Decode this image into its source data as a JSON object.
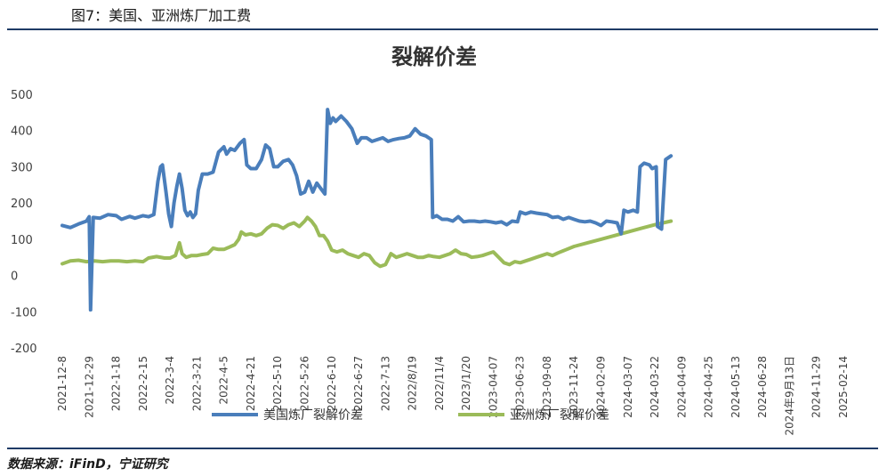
{
  "figure": {
    "caption": "图7：美国、亚洲炼厂加工费",
    "source": "数据来源：iFinD，宁证研究"
  },
  "colors": {
    "us": "#4a7ebb",
    "asia": "#9bbb59",
    "rule": "#1f3b66"
  },
  "chart_data": {
    "type": "line",
    "title": "裂解价差",
    "xlabel": "",
    "ylabel": "",
    "ylim": [
      -200,
      500
    ],
    "yticks": [
      500,
      400,
      300,
      200,
      100,
      0,
      -100,
      -200
    ],
    "categories": [
      "2021-12-8",
      "2021-12-29",
      "2022-1-18",
      "2022-2-15",
      "2022-3-4",
      "2022-3-21",
      "2022-4-5",
      "2022-4-21",
      "2022-5-10",
      "2022-5-26",
      "2022-6-10",
      "2022-6-27",
      "2022-7-13",
      "2022/8/19",
      "2022/11/4",
      "2023/1/20",
      "2023-04-07",
      "2023-06-23",
      "2023-09-08",
      "2023-11-24",
      "2024-02-09",
      "2024-03-07",
      "2024-03-22",
      "2024-04-09",
      "2024-04-25",
      "2024-05-13",
      "2024-06-28",
      "2024年9月13日",
      "2024-11-29",
      "2025-02-14"
    ],
    "grid": false,
    "legend_position": "bottom",
    "series": [
      {
        "name": "美国炼厂裂解价差",
        "points": [
          [
            0,
            138
          ],
          [
            0.3,
            132
          ],
          [
            0.6,
            142
          ],
          [
            0.9,
            150
          ],
          [
            1.0,
            162
          ],
          [
            1.05,
            -95
          ],
          [
            1.15,
            160
          ],
          [
            1.4,
            158
          ],
          [
            1.7,
            168
          ],
          [
            2.0,
            165
          ],
          [
            2.2,
            155
          ],
          [
            2.5,
            163
          ],
          [
            2.7,
            158
          ],
          [
            3.0,
            165
          ],
          [
            3.2,
            162
          ],
          [
            3.4,
            168
          ],
          [
            3.55,
            260
          ],
          [
            3.65,
            300
          ],
          [
            3.72,
            305
          ],
          [
            3.85,
            230
          ],
          [
            3.95,
            170
          ],
          [
            4.05,
            135
          ],
          [
            4.15,
            200
          ],
          [
            4.25,
            245
          ],
          [
            4.35,
            280
          ],
          [
            4.45,
            240
          ],
          [
            4.55,
            180
          ],
          [
            4.65,
            165
          ],
          [
            4.75,
            175
          ],
          [
            4.85,
            160
          ],
          [
            4.95,
            170
          ],
          [
            5.05,
            235
          ],
          [
            5.2,
            280
          ],
          [
            5.4,
            280
          ],
          [
            5.6,
            285
          ],
          [
            5.8,
            340
          ],
          [
            6.0,
            355
          ],
          [
            6.1,
            335
          ],
          [
            6.25,
            350
          ],
          [
            6.4,
            345
          ],
          [
            6.6,
            365
          ],
          [
            6.75,
            375
          ],
          [
            6.85,
            305
          ],
          [
            7.0,
            295
          ],
          [
            7.2,
            295
          ],
          [
            7.4,
            320
          ],
          [
            7.55,
            360
          ],
          [
            7.7,
            350
          ],
          [
            7.85,
            300
          ],
          [
            8.0,
            300
          ],
          [
            8.2,
            315
          ],
          [
            8.4,
            320
          ],
          [
            8.55,
            305
          ],
          [
            8.7,
            275
          ],
          [
            8.85,
            225
          ],
          [
            9.0,
            230
          ],
          [
            9.15,
            260
          ],
          [
            9.3,
            230
          ],
          [
            9.45,
            255
          ],
          [
            9.6,
            240
          ],
          [
            9.75,
            225
          ],
          [
            9.85,
            458
          ],
          [
            9.95,
            420
          ],
          [
            10.05,
            435
          ],
          [
            10.15,
            425
          ],
          [
            10.35,
            440
          ],
          [
            10.55,
            425
          ],
          [
            10.75,
            405
          ],
          [
            10.95,
            365
          ],
          [
            11.1,
            380
          ],
          [
            11.3,
            380
          ],
          [
            11.5,
            370
          ],
          [
            11.7,
            375
          ],
          [
            11.9,
            380
          ],
          [
            12.1,
            370
          ],
          [
            12.3,
            375
          ],
          [
            12.5,
            378
          ],
          [
            12.7,
            380
          ],
          [
            12.9,
            385
          ],
          [
            13.1,
            405
          ],
          [
            13.3,
            390
          ],
          [
            13.5,
            385
          ],
          [
            13.7,
            375
          ],
          [
            13.75,
            160
          ],
          [
            13.9,
            165
          ],
          [
            14.1,
            155
          ],
          [
            14.3,
            155
          ],
          [
            14.5,
            150
          ],
          [
            14.7,
            162
          ],
          [
            14.9,
            148
          ],
          [
            15.1,
            150
          ],
          [
            15.3,
            150
          ],
          [
            15.5,
            148
          ],
          [
            15.7,
            150
          ],
          [
            15.9,
            148
          ],
          [
            16.1,
            145
          ],
          [
            16.3,
            148
          ],
          [
            16.5,
            140
          ],
          [
            16.7,
            150
          ],
          [
            16.9,
            148
          ],
          [
            17.0,
            175
          ],
          [
            17.2,
            170
          ],
          [
            17.4,
            175
          ],
          [
            17.6,
            172
          ],
          [
            17.8,
            170
          ],
          [
            18.0,
            168
          ],
          [
            18.2,
            160
          ],
          [
            18.4,
            162
          ],
          [
            18.6,
            155
          ],
          [
            18.8,
            160
          ],
          [
            19.0,
            155
          ],
          [
            19.2,
            150
          ],
          [
            19.4,
            148
          ],
          [
            19.6,
            150
          ],
          [
            19.8,
            145
          ],
          [
            20.0,
            138
          ],
          [
            20.2,
            150
          ],
          [
            20.4,
            148
          ],
          [
            20.6,
            145
          ],
          [
            20.75,
            115
          ],
          [
            20.85,
            180
          ],
          [
            21.0,
            175
          ],
          [
            21.2,
            180
          ],
          [
            21.35,
            175
          ],
          [
            21.45,
            300
          ],
          [
            21.6,
            310
          ],
          [
            21.8,
            305
          ],
          [
            21.9,
            295
          ],
          [
            22.05,
            300
          ],
          [
            22.1,
            135
          ],
          [
            22.25,
            128
          ],
          [
            22.4,
            320
          ],
          [
            22.6,
            330
          ]
        ]
      },
      {
        "name": "亚洲炼厂裂解价差",
        "points": [
          [
            0,
            32
          ],
          [
            0.3,
            40
          ],
          [
            0.6,
            42
          ],
          [
            0.9,
            38
          ],
          [
            1.2,
            40
          ],
          [
            1.5,
            38
          ],
          [
            1.8,
            40
          ],
          [
            2.1,
            40
          ],
          [
            2.4,
            38
          ],
          [
            2.7,
            40
          ],
          [
            3.0,
            38
          ],
          [
            3.2,
            48
          ],
          [
            3.5,
            52
          ],
          [
            3.8,
            48
          ],
          [
            4.0,
            48
          ],
          [
            4.2,
            55
          ],
          [
            4.35,
            90
          ],
          [
            4.45,
            60
          ],
          [
            4.6,
            50
          ],
          [
            4.8,
            55
          ],
          [
            5.0,
            55
          ],
          [
            5.2,
            58
          ],
          [
            5.4,
            60
          ],
          [
            5.6,
            75
          ],
          [
            5.8,
            72
          ],
          [
            6.0,
            72
          ],
          [
            6.2,
            78
          ],
          [
            6.4,
            85
          ],
          [
            6.55,
            100
          ],
          [
            6.65,
            120
          ],
          [
            6.8,
            112
          ],
          [
            7.0,
            115
          ],
          [
            7.2,
            110
          ],
          [
            7.4,
            115
          ],
          [
            7.6,
            130
          ],
          [
            7.8,
            140
          ],
          [
            8.0,
            138
          ],
          [
            8.2,
            130
          ],
          [
            8.4,
            140
          ],
          [
            8.6,
            145
          ],
          [
            8.8,
            135
          ],
          [
            9.0,
            150
          ],
          [
            9.1,
            160
          ],
          [
            9.25,
            150
          ],
          [
            9.4,
            135
          ],
          [
            9.55,
            110
          ],
          [
            9.7,
            110
          ],
          [
            9.85,
            95
          ],
          [
            10.0,
            70
          ],
          [
            10.2,
            65
          ],
          [
            10.4,
            70
          ],
          [
            10.6,
            60
          ],
          [
            10.8,
            55
          ],
          [
            11.0,
            50
          ],
          [
            11.2,
            60
          ],
          [
            11.4,
            55
          ],
          [
            11.6,
            35
          ],
          [
            11.8,
            25
          ],
          [
            12.0,
            30
          ],
          [
            12.2,
            60
          ],
          [
            12.4,
            50
          ],
          [
            12.6,
            55
          ],
          [
            12.8,
            60
          ],
          [
            13.0,
            55
          ],
          [
            13.2,
            50
          ],
          [
            13.4,
            50
          ],
          [
            13.6,
            55
          ],
          [
            13.8,
            52
          ],
          [
            14.0,
            50
          ],
          [
            14.2,
            55
          ],
          [
            14.4,
            60
          ],
          [
            14.6,
            70
          ],
          [
            14.8,
            60
          ],
          [
            15.0,
            58
          ],
          [
            15.2,
            50
          ],
          [
            15.4,
            52
          ],
          [
            15.6,
            55
          ],
          [
            15.8,
            60
          ],
          [
            16.0,
            65
          ],
          [
            16.2,
            50
          ],
          [
            16.4,
            35
          ],
          [
            16.6,
            30
          ],
          [
            16.8,
            38
          ],
          [
            17.0,
            35
          ],
          [
            17.2,
            40
          ],
          [
            17.4,
            45
          ],
          [
            17.6,
            50
          ],
          [
            17.8,
            55
          ],
          [
            18.0,
            60
          ],
          [
            18.2,
            55
          ],
          [
            18.4,
            62
          ],
          [
            18.6,
            68
          ],
          [
            19.0,
            80
          ],
          [
            19.5,
            90
          ],
          [
            20.0,
            100
          ],
          [
            20.5,
            110
          ],
          [
            21.0,
            120
          ],
          [
            21.5,
            130
          ],
          [
            22.0,
            140
          ],
          [
            22.6,
            150
          ]
        ]
      }
    ]
  }
}
